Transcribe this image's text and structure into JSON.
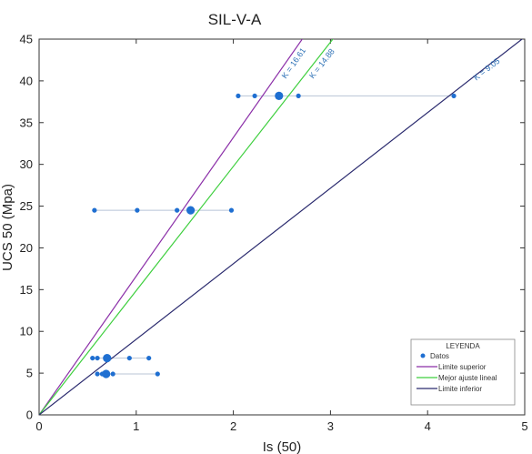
{
  "chart_data": {
    "type": "scatter",
    "title": "SIL-V-A",
    "xlabel": "Is (50)",
    "ylabel": "UCS 50 (Mpa)",
    "xlim": [
      0,
      5
    ],
    "ylim": [
      0,
      45
    ],
    "x_ticks": [
      "0",
      "1",
      "2",
      "3",
      "4",
      "5"
    ],
    "y_ticks": [
      "0",
      "5",
      "10",
      "15",
      "20",
      "25",
      "30",
      "35",
      "40",
      "45"
    ],
    "grid": false,
    "colors": {
      "datos": "#1f6fd1",
      "limite_superior": "#8b2fa8",
      "mejor_ajuste": "#3ecf3e",
      "limite_inferior": "#2a2a6e",
      "range_line": "#b8c4d6",
      "k_label": "#2a6fb5"
    },
    "range_lines": [
      {
        "y": 38.2,
        "x_min": 2.05,
        "x_max": 4.27
      },
      {
        "y": 24.5,
        "x_min": 0.57,
        "x_max": 1.98
      },
      {
        "y": 6.8,
        "x_min": 0.55,
        "x_max": 1.13
      },
      {
        "y": 4.9,
        "x_min": 0.6,
        "x_max": 1.22
      }
    ],
    "points": [
      {
        "x": 2.05,
        "y": 38.2,
        "size": "small"
      },
      {
        "x": 2.22,
        "y": 38.2,
        "size": "small"
      },
      {
        "x": 2.67,
        "y": 38.2,
        "size": "small"
      },
      {
        "x": 4.27,
        "y": 38.2,
        "size": "small"
      },
      {
        "x": 2.47,
        "y": 38.2,
        "size": "large"
      },
      {
        "x": 0.57,
        "y": 24.5,
        "size": "small"
      },
      {
        "x": 1.01,
        "y": 24.5,
        "size": "small"
      },
      {
        "x": 1.42,
        "y": 24.5,
        "size": "small"
      },
      {
        "x": 1.98,
        "y": 24.5,
        "size": "small"
      },
      {
        "x": 1.56,
        "y": 24.5,
        "size": "large"
      },
      {
        "x": 0.55,
        "y": 6.8,
        "size": "small"
      },
      {
        "x": 0.6,
        "y": 6.8,
        "size": "small"
      },
      {
        "x": 0.93,
        "y": 6.8,
        "size": "small"
      },
      {
        "x": 1.13,
        "y": 6.8,
        "size": "small"
      },
      {
        "x": 0.7,
        "y": 6.8,
        "size": "large"
      },
      {
        "x": 0.6,
        "y": 4.9,
        "size": "small"
      },
      {
        "x": 0.65,
        "y": 4.9,
        "size": "small"
      },
      {
        "x": 0.76,
        "y": 4.9,
        "size": "small"
      },
      {
        "x": 1.22,
        "y": 4.9,
        "size": "small"
      },
      {
        "x": 0.69,
        "y": 4.9,
        "size": "large"
      }
    ],
    "lines": [
      {
        "name": "Limite superior",
        "k": 16.61,
        "label": "K = 16.61",
        "color_key": "limite_superior"
      },
      {
        "name": "Mejor ajuste lineal",
        "k": 14.88,
        "label": "K = 14.88",
        "color_key": "mejor_ajuste"
      },
      {
        "name": "Limite inferior",
        "k": 9.05,
        "label": "K = 9.05",
        "color_key": "limite_inferior"
      }
    ],
    "legend": {
      "title": "LEYENDA",
      "position": "bottom-right",
      "entries": [
        {
          "label": "Datos",
          "marker": "dot",
          "color_key": "datos"
        },
        {
          "label": "Limite superior",
          "marker": "line",
          "color_key": "limite_superior"
        },
        {
          "label": "Mejor ajuste lineal",
          "marker": "line",
          "color_key": "mejor_ajuste"
        },
        {
          "label": "Limite inferior",
          "marker": "line",
          "color_key": "limite_inferior"
        }
      ]
    }
  }
}
